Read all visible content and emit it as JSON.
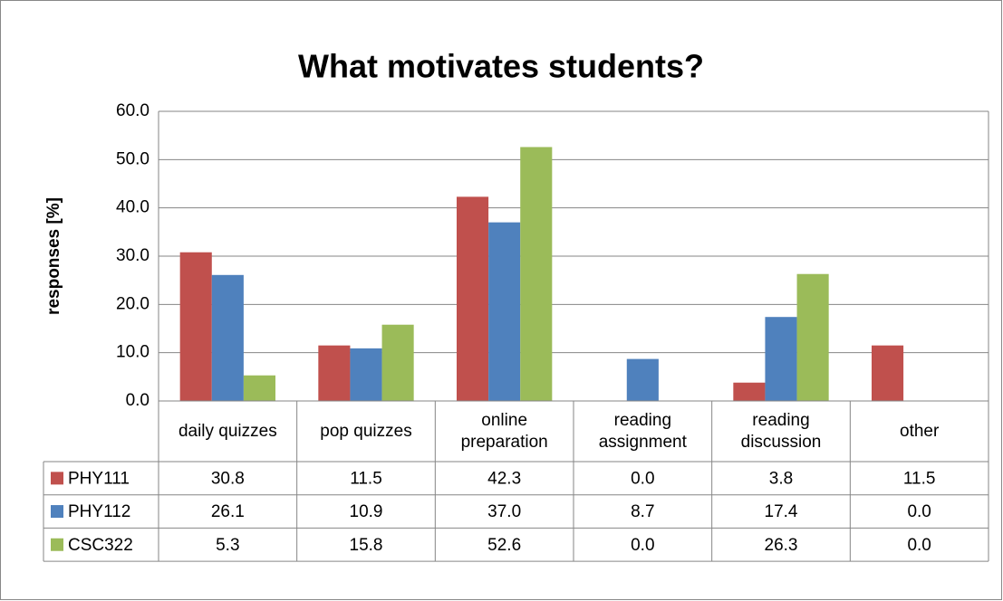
{
  "chart_data": {
    "type": "bar",
    "title": "What motivates students?",
    "y_label": "responses [%]",
    "categories": [
      "daily quizzes",
      "pop quizzes",
      "online preparation",
      "reading assignment",
      "reading discussion",
      "other"
    ],
    "series": [
      {
        "name": "PHY111",
        "color": "#c0504d",
        "values": [
          30.8,
          11.5,
          42.3,
          0,
          3.8,
          11.5
        ],
        "value_labels": [
          "30.8",
          "11.5",
          "42.3",
          "0.0",
          "3.8",
          "11.5"
        ]
      },
      {
        "name": "PHY112",
        "color": "#4f81bd",
        "values": [
          26.1,
          10.9,
          37,
          8.7,
          17.4,
          0
        ],
        "value_labels": [
          "26.1",
          "10.9",
          "37.0",
          "8.7",
          "17.4",
          "0.0"
        ]
      },
      {
        "name": "CSC322",
        "color": "#9bbb59",
        "values": [
          5.3,
          15.8,
          52.6,
          0,
          26.3,
          0
        ],
        "value_labels": [
          "5.3",
          "15.8",
          "52.6",
          "0.0",
          "26.3",
          "0.0"
        ]
      }
    ],
    "ylim": [
      0,
      60
    ],
    "yticks": [
      {
        "value": 0,
        "label": "0.0"
      },
      {
        "value": 10,
        "label": "10.0"
      },
      {
        "value": 20,
        "label": "20.0"
      },
      {
        "value": 30,
        "label": "30.0"
      },
      {
        "value": 40,
        "label": "40.0"
      },
      {
        "value": 50,
        "label": "50.0"
      },
      {
        "value": 60,
        "label": "60.0"
      }
    ],
    "grid": true,
    "legend": "data-table"
  }
}
